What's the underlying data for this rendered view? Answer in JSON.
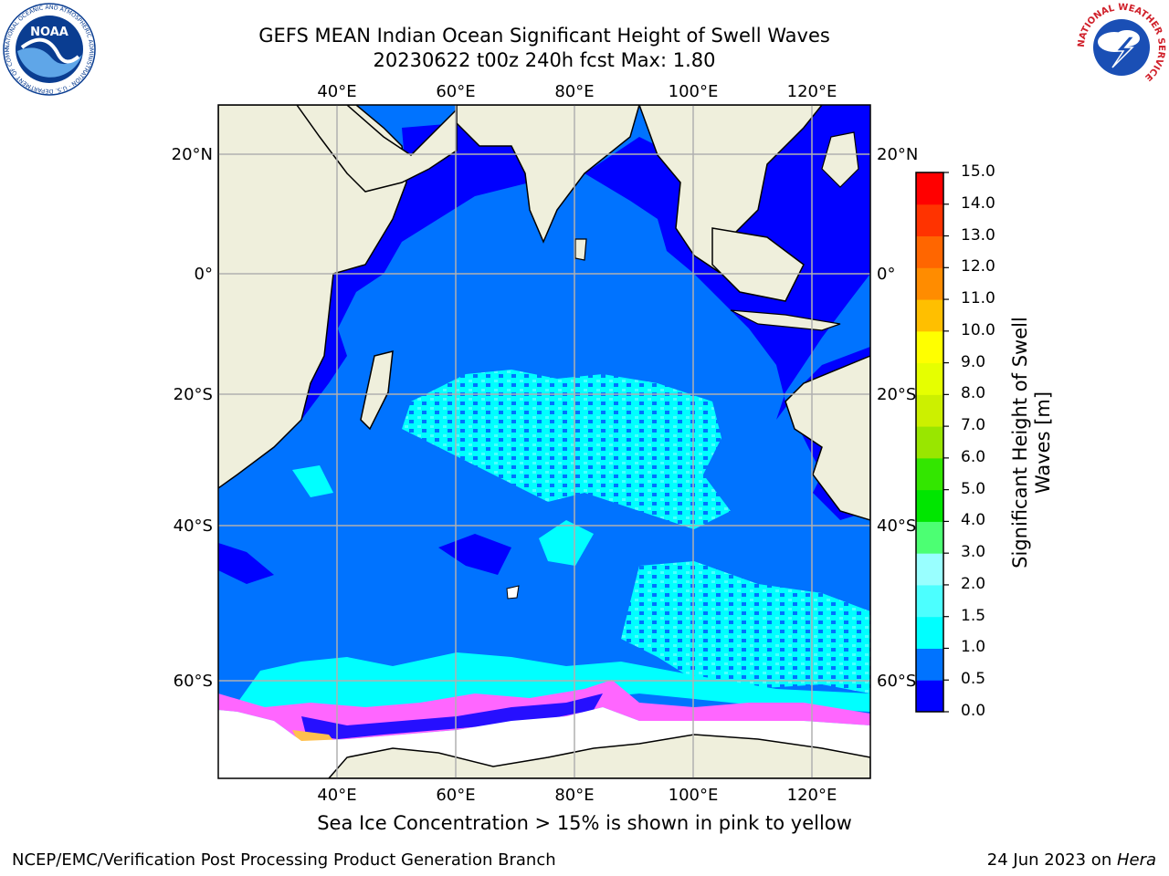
{
  "header": {
    "title_line1": "GEFS MEAN Indian Ocean Significant Height of Swell Waves",
    "title_line2": "20230622 t00z 240h fcst   Max: 1.80"
  },
  "logos": {
    "noaa_text": "NOAA",
    "noaa_ring_text": "NATIONAL OCEANIC AND ATMOSPHERIC ADMINISTRATION · U.S. DEPARTMENT OF COMMERCE",
    "nws_ring_text": "NATIONAL WEATHER SERVICE"
  },
  "map": {
    "lon_ticks": [
      "40°E",
      "60°E",
      "80°E",
      "100°E",
      "120°E"
    ],
    "lat_left_ticks": [
      "20°N",
      "0°",
      "20°S",
      "40°S",
      "60°S"
    ],
    "lat_right_ticks": [
      "20°N",
      "0°",
      "20°S",
      "40°S",
      "60°S"
    ],
    "colors": {
      "land": "#efefdc",
      "ocean_0_0.5": "#0000ff",
      "ocean_0.5_1.0": "#0073ff",
      "ocean_1.0_1.5": "#00ffff",
      "ocean_1.5_2.0": "#4cffff",
      "ice_low": "#ff66ff",
      "ice_high": "#ffc04d",
      "grid": "#b0b0b0"
    }
  },
  "colorbar": {
    "label": "Significant Height of Swell Waves [m]",
    "ticks": [
      "0.0",
      "0.5",
      "1.0",
      "1.5",
      "2.0",
      "3.0",
      "4.0",
      "5.0",
      "6.0",
      "7.0",
      "8.0",
      "9.0",
      "10.0",
      "11.0",
      "12.0",
      "13.0",
      "14.0",
      "15.0"
    ],
    "colors": [
      "#0000ff",
      "#0073ff",
      "#00ffff",
      "#4cffff",
      "#99ffff",
      "#4cff73",
      "#00e600",
      "#33e600",
      "#99e600",
      "#ccf000",
      "#e6ff00",
      "#ffff00",
      "#ffbf00",
      "#ff8c00",
      "#ff6600",
      "#ff3300",
      "#ff0000"
    ]
  },
  "footer": {
    "subtitle": "Sea Ice Concentration > 15% is shown in pink to yellow",
    "credit": "NCEP/EMC/Verification Post Processing Product Generation Branch",
    "date_prefix": "24 Jun 2023 on ",
    "date_host": "Hera"
  }
}
